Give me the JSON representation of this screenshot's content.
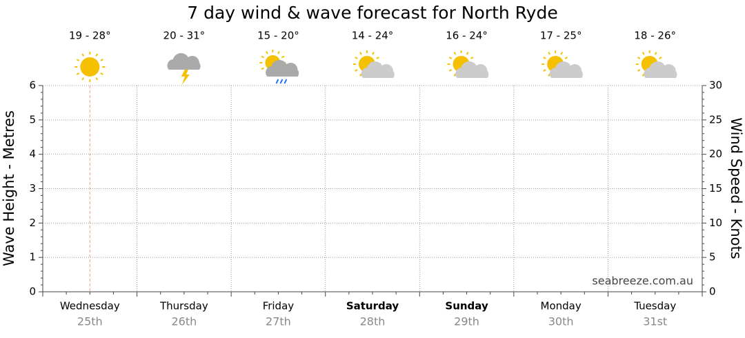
{
  "chart_data": {
    "type": "line",
    "title": "7 day wind & wave forecast for North Ryde",
    "categories": [
      "Wednesday",
      "Thursday",
      "Friday",
      "Saturday",
      "Sunday",
      "Monday",
      "Tuesday"
    ],
    "dates": [
      "25th",
      "26th",
      "27th",
      "28th",
      "29th",
      "30th",
      "31st"
    ],
    "bold": [
      false,
      false,
      false,
      true,
      true,
      false,
      false
    ],
    "temperatures": [
      "19 - 28°",
      "20 - 31°",
      "15 - 20°",
      "14 - 24°",
      "16 - 24°",
      "17 - 25°",
      "18 - 26°"
    ],
    "icons": [
      "sunny",
      "storm",
      "showers",
      "partly-cloudy",
      "partly-cloudy",
      "partly-cloudy",
      "partly-cloudy"
    ],
    "now_category": 0,
    "ylabel": "Wave Height - Metres",
    "ylim": [
      0,
      6
    ],
    "yticks": [
      0,
      1,
      2,
      3,
      4,
      5,
      6
    ],
    "y2label": "Wind Speed - Knots",
    "y2lim": [
      0,
      30
    ],
    "y2ticks": [
      0,
      5,
      10,
      15,
      20,
      25,
      30
    ],
    "grid": true,
    "watermark": "seabreeze.com.au"
  }
}
